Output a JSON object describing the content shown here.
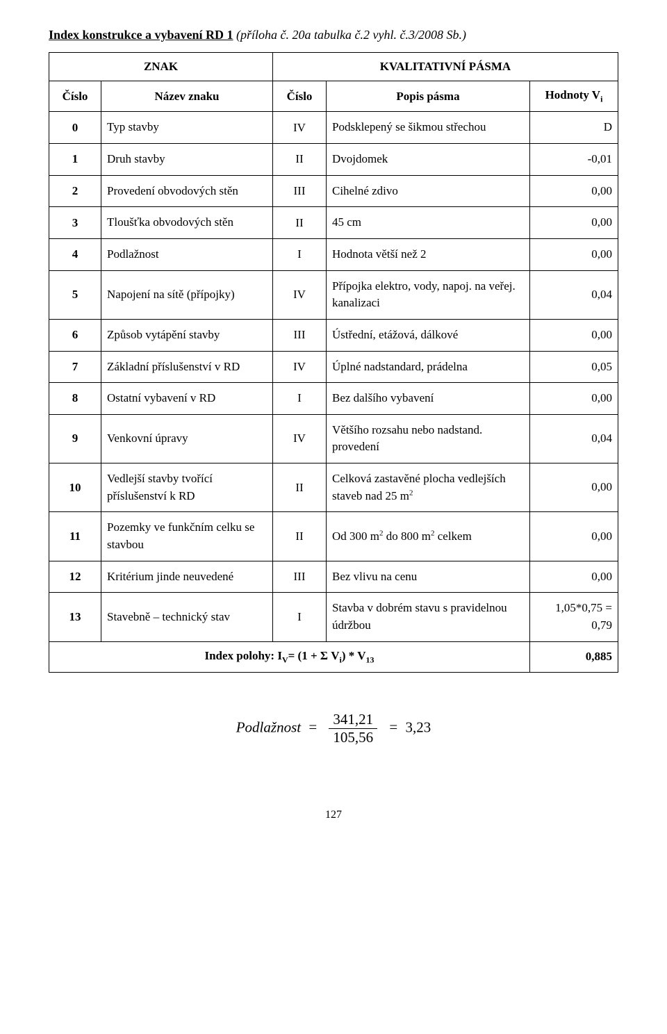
{
  "title": {
    "main": "Index konstrukce a vybavení RD 1",
    "sub": "(příloha č. 20a  tabulka č.2 vyhl. č.3/2008 Sb.)"
  },
  "headers": {
    "znak": "ZNAK",
    "kval": "KVALITATIVNÍ PÁSMA",
    "cislo1": "Číslo",
    "nazev": "Název znaku",
    "cislo2": "Číslo",
    "popis": "Popis pásma",
    "hodnoty": "Hodnoty V",
    "hodnoty_sub": "i"
  },
  "rows": [
    {
      "n": "0",
      "name": "Typ stavby",
      "code": "IV",
      "desc": "Podsklepený se šikmou střechou",
      "val": "D"
    },
    {
      "n": "1",
      "name": "Druh stavby",
      "code": "II",
      "desc": "Dvojdomek",
      "val": "-0,01"
    },
    {
      "n": "2",
      "name": "Provedení obvodových stěn",
      "code": "III",
      "desc": "Cihelné zdivo",
      "val": "0,00"
    },
    {
      "n": "3",
      "name": "Tloušťka obvodových stěn",
      "code": "II",
      "desc": "45 cm",
      "val": "0,00"
    },
    {
      "n": "4",
      "name": "Podlažnost",
      "code": "I",
      "desc": "Hodnota větší než 2",
      "val": "0,00"
    },
    {
      "n": "5",
      "name": "Napojení na sítě (přípojky)",
      "code": "IV",
      "desc": "Přípojka elektro, vody, napoj. na veřej. kanalizaci",
      "val": "0,04"
    },
    {
      "n": "6",
      "name": "Způsob vytápění stavby",
      "code": "III",
      "desc": "Ústřední, etážová, dálkové",
      "val": "0,00"
    },
    {
      "n": "7",
      "name": "Základní příslušenství v RD",
      "code": "IV",
      "desc": "Úplné nadstandard, prádelna",
      "val": "0,05"
    },
    {
      "n": "8",
      "name": "Ostatní vybavení v RD",
      "code": "I",
      "desc": "Bez dalšího vybavení",
      "val": "0,00"
    },
    {
      "n": "9",
      "name": "Venkovní úpravy",
      "code": "IV",
      "desc": "Většího rozsahu nebo nadstand. provedení",
      "val": "0,04"
    },
    {
      "n": "10",
      "name": "Vedlejší stavby tvořící příslušenství k RD",
      "code": "II",
      "desc_html": "Celková zastavěné plocha vedlejších staveb nad 25 m<span class=\"sup\">2</span>",
      "val": "0,00"
    },
    {
      "n": "11",
      "name": "Pozemky ve funkčním   celku se stavbou",
      "code": "II",
      "desc_html": "Od 300 m<span class=\"sup\">2</span> do 800 m<span class=\"sup\">2</span> celkem",
      "val": "0,00"
    },
    {
      "n": "12",
      "name": "Kritérium jinde neuvedené",
      "code": "III",
      "desc": "Bez vlivu na cenu",
      "val": "0,00"
    },
    {
      "n": "13",
      "name": "Stavebně – technický stav",
      "code": "I",
      "desc": "Stavba v dobrém stavu s pravidelnou údržbou",
      "val_html": "1,05*0,75 =<br>0,79"
    }
  ],
  "index_row": {
    "label_html": "Index polohy: I<span style=\"vertical-align:sub;font-size:12px\">V</span>= (1 + Σ V<span style=\"vertical-align:sub;font-size:12px\">i</span>) * V<span style=\"vertical-align:sub;font-size:12px\">13</span>",
    "value": "0,885"
  },
  "formula": {
    "lhs": "Podlažnost",
    "num": "341,21",
    "den": "105,56",
    "rhs": "3,23"
  },
  "page_number": "127"
}
